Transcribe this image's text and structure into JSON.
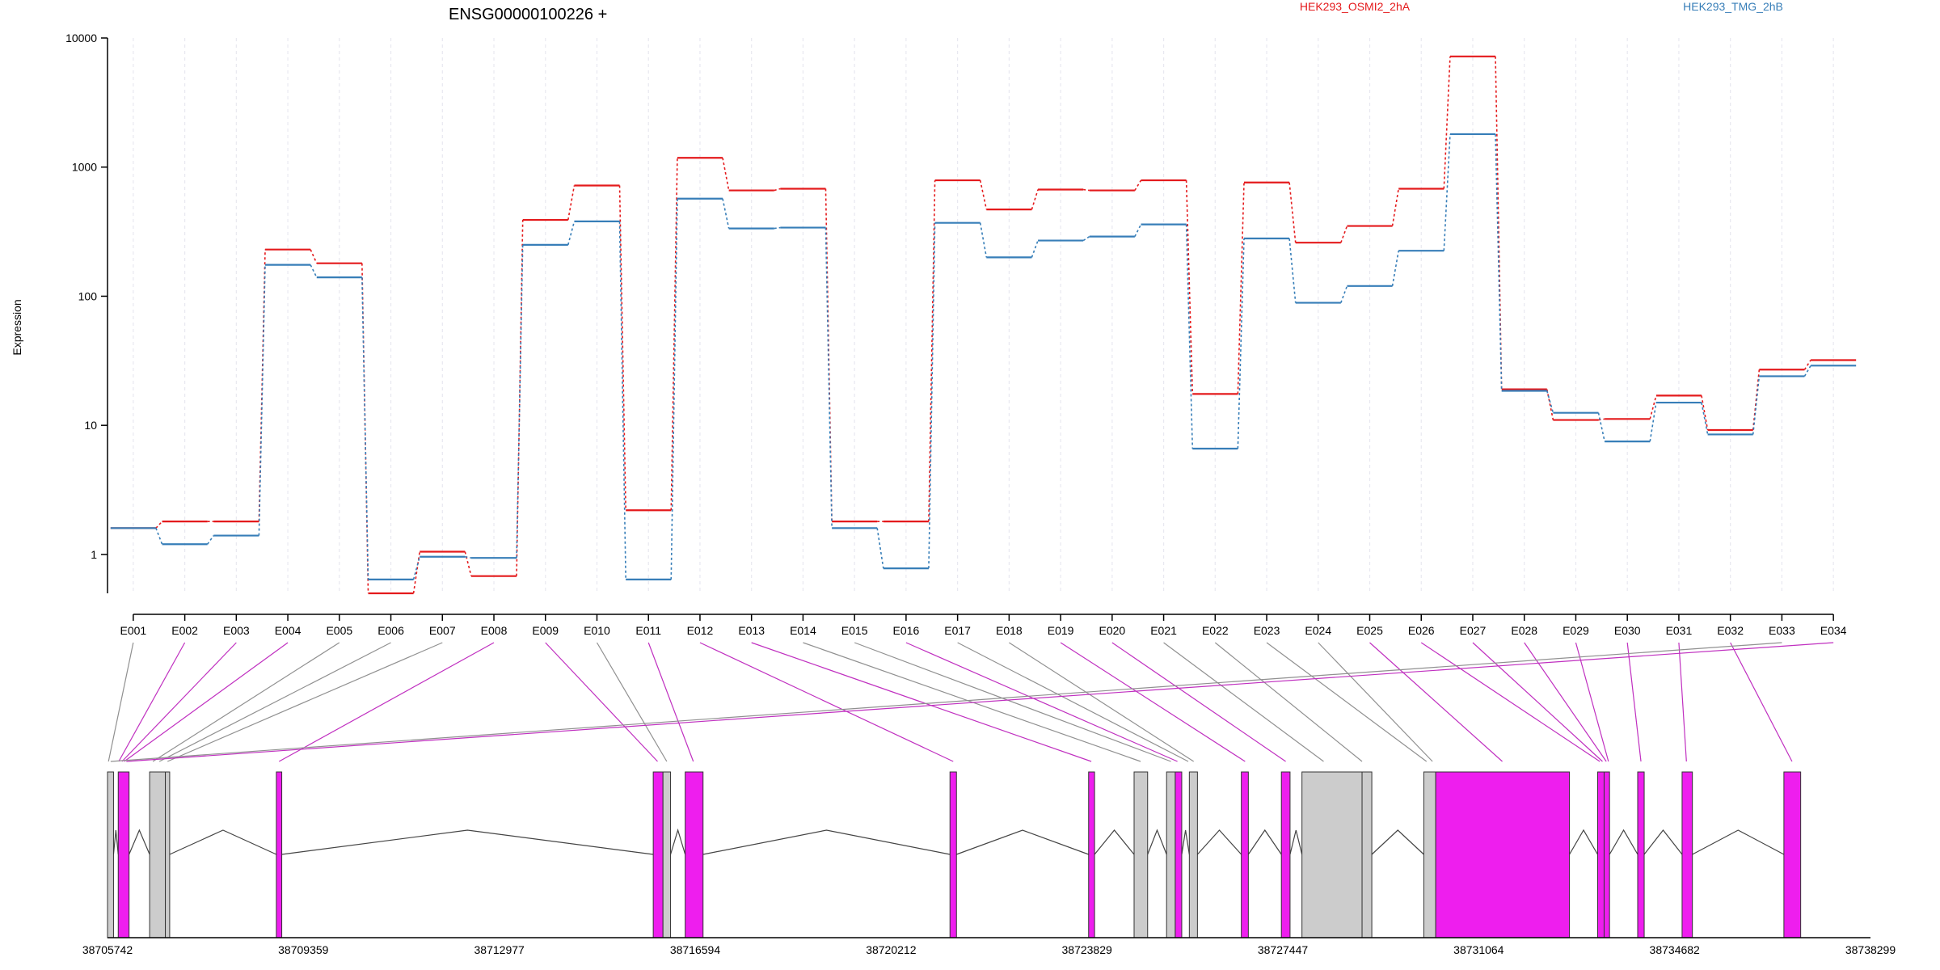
{
  "chart_data": [
    {
      "type": "line",
      "title": "ENSG00000100226 +",
      "xlabel": "",
      "ylabel": "Expression",
      "yscale": "log",
      "ylim": [
        0.5,
        10000
      ],
      "yticks": [
        "1",
        "10",
        "100",
        "1000",
        "10000"
      ],
      "grid": "vertical",
      "legend_position": "top",
      "categories": [
        "E001",
        "E002",
        "E003",
        "E004",
        "E005",
        "E006",
        "E007",
        "E008",
        "E009",
        "E010",
        "E011",
        "E012",
        "E013",
        "E014",
        "E015",
        "E016",
        "E017",
        "E018",
        "E019",
        "E020",
        "E021",
        "E022",
        "E023",
        "E024",
        "E025",
        "E026",
        "E027",
        "E028",
        "E029",
        "E030",
        "E031",
        "E032",
        "E033",
        "E034"
      ],
      "series": [
        {
          "name": "HEK293_OSMI2_2hA",
          "color": "#e41a1c",
          "values": [
            1.6,
            1.8,
            1.8,
            230,
            180,
            0.5,
            1.05,
            0.68,
            390,
            720,
            2.2,
            1180,
            660,
            680,
            1.8,
            1.8,
            790,
            470,
            670,
            660,
            790,
            17.5,
            760,
            260,
            350,
            680,
            7200,
            19,
            11,
            11.2,
            17,
            9.2,
            27,
            32
          ]
        },
        {
          "name": "HEK293_TMG_2hB",
          "color": "#377eb8",
          "values": [
            1.6,
            1.2,
            1.4,
            175,
            140,
            0.64,
            0.96,
            0.94,
            250,
            380,
            0.64,
            570,
            335,
            340,
            1.6,
            0.78,
            370,
            200,
            270,
            290,
            360,
            6.6,
            280,
            89,
            120,
            225,
            1800,
            18.5,
            12.5,
            7.5,
            15,
            8.5,
            24,
            29
          ]
        }
      ]
    },
    {
      "type": "gene-model",
      "title": "",
      "xlabel": "",
      "ylabel": "",
      "xlim": [
        38705742,
        38738299
      ],
      "xticks": [
        "38705742",
        "38709359",
        "38712977",
        "38716594",
        "38720212",
        "38723829",
        "38727447",
        "38731064",
        "38734682",
        "38738299"
      ],
      "colors": {
        "tested_exon": "#ee1eee",
        "untested_exon": "#cccccc",
        "intron": "#444444"
      },
      "exon_blocks": [
        {
          "start": 38705742,
          "end": 38705853,
          "tested": false
        },
        {
          "start": 38705940,
          "end": 38706140,
          "tested": true
        },
        {
          "start": 38706520,
          "end": 38706810,
          "tested": false
        },
        {
          "start": 38706810,
          "end": 38706890,
          "tested": false
        },
        {
          "start": 38708860,
          "end": 38708960,
          "tested": true
        },
        {
          "start": 38715820,
          "end": 38716000,
          "tested": true
        },
        {
          "start": 38716000,
          "end": 38716140,
          "tested": false
        },
        {
          "start": 38716410,
          "end": 38716740,
          "tested": true
        },
        {
          "start": 38721300,
          "end": 38721420,
          "tested": true
        },
        {
          "start": 38723860,
          "end": 38723970,
          "tested": true
        },
        {
          "start": 38724700,
          "end": 38724950,
          "tested": false
        },
        {
          "start": 38725300,
          "end": 38725460,
          "tested": false
        },
        {
          "start": 38725460,
          "end": 38725580,
          "tested": true
        },
        {
          "start": 38725720,
          "end": 38725870,
          "tested": false
        },
        {
          "start": 38726680,
          "end": 38726810,
          "tested": true
        },
        {
          "start": 38727420,
          "end": 38727580,
          "tested": true
        },
        {
          "start": 38727800,
          "end": 38728910,
          "tested": false
        },
        {
          "start": 38728910,
          "end": 38729090,
          "tested": false
        },
        {
          "start": 38730050,
          "end": 38730270,
          "tested": false
        },
        {
          "start": 38730270,
          "end": 38732740,
          "tested": true
        },
        {
          "start": 38733260,
          "end": 38733380,
          "tested": true
        },
        {
          "start": 38733380,
          "end": 38733480,
          "tested": true
        },
        {
          "start": 38734000,
          "end": 38734120,
          "tested": true
        },
        {
          "start": 38734820,
          "end": 38735010,
          "tested": true
        },
        {
          "start": 38736700,
          "end": 38737010,
          "tested": true
        }
      ],
      "exon_positions": [
        38705760,
        38705950,
        38706010,
        38706050,
        38706580,
        38706700,
        38706850,
        38708910,
        38715900,
        38716070,
        38716560,
        38721360,
        38723910,
        38724820,
        38725380,
        38725500,
        38725700,
        38725800,
        38726750,
        38727500,
        38728200,
        38728910,
        38730100,
        38730210,
        38731500,
        38733300,
        38733350,
        38733420,
        38733460,
        38734060,
        38734900,
        38736850,
        38705800,
        38706090
      ],
      "introns": [
        [
          38705853,
          38705940
        ],
        [
          38706140,
          38706520
        ],
        [
          38706890,
          38708860
        ],
        [
          38708960,
          38715820
        ],
        [
          38716140,
          38716410
        ],
        [
          38716740,
          38721300
        ],
        [
          38721420,
          38723860
        ],
        [
          38723970,
          38724700
        ],
        [
          38724950,
          38725300
        ],
        [
          38725580,
          38725720
        ],
        [
          38725870,
          38726680
        ],
        [
          38726810,
          38727420
        ],
        [
          38727580,
          38727800
        ],
        [
          38729090,
          38730050
        ],
        [
          38732740,
          38733260
        ],
        [
          38733480,
          38734000
        ],
        [
          38734120,
          38734820
        ],
        [
          38735010,
          38736700
        ]
      ]
    }
  ]
}
